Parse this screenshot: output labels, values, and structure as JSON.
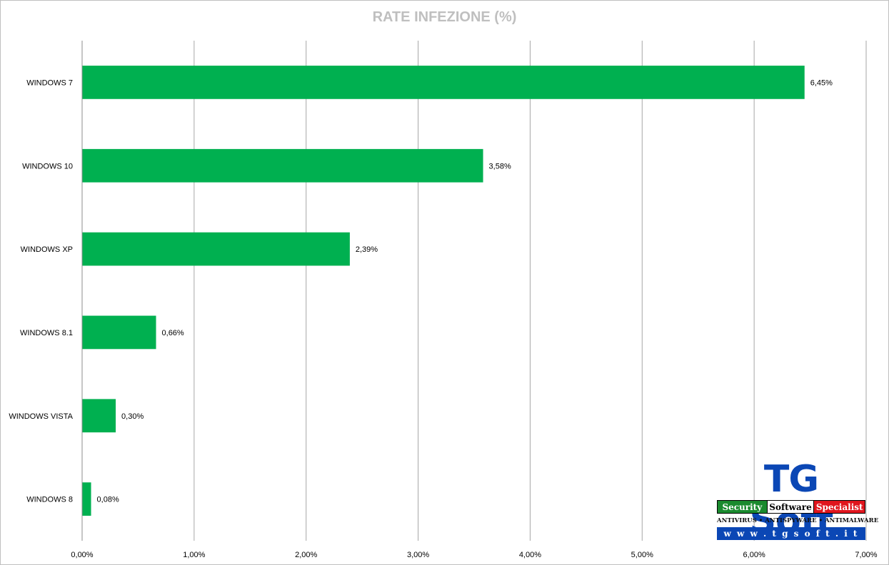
{
  "chart_data": {
    "type": "bar",
    "orientation": "horizontal",
    "title": "RATE INFEZIONE (%)",
    "categories": [
      "WINDOWS 7",
      "WINDOWS 10",
      "WINDOWS XP",
      "WINDOWS 8.1",
      "WINDOWS VISTA",
      "WINDOWS 8"
    ],
    "values": [
      6.45,
      3.58,
      2.39,
      0.66,
      0.3,
      0.08
    ],
    "value_labels": [
      "6,45%",
      "3,58%",
      "2,39%",
      "0,66%",
      "0,30%",
      "0,08%"
    ],
    "xlim": [
      0,
      7
    ],
    "xticks": [
      0,
      1,
      2,
      3,
      4,
      5,
      6,
      7
    ],
    "xtick_labels": [
      "0,00%",
      "1,00%",
      "2,00%",
      "3,00%",
      "4,00%",
      "5,00%",
      "6,00%",
      "7,00%"
    ],
    "grid": "vertical",
    "bar_color": "#00b050"
  },
  "logo": {
    "mark": "TG Soft",
    "band": [
      "Security",
      "Software",
      "Specialist"
    ],
    "tagline": "ANTIVIRUS • ANTISPYWARE • ANTIMALWARE",
    "url": "w w w . t g s o f t . i t"
  }
}
